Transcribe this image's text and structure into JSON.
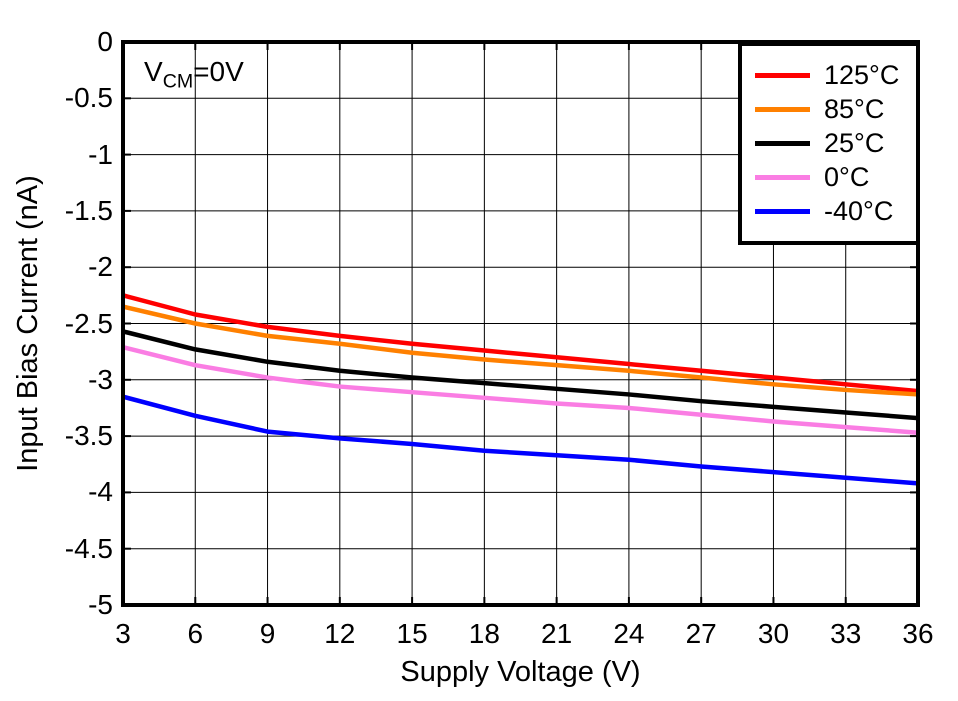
{
  "chart_data": {
    "type": "line",
    "title": "",
    "xlabel": "Supply Voltage (V)",
    "ylabel": "Input Bias Current (nA)",
    "annotation": {
      "text": "VCM=0V",
      "pre": "V",
      "sub": "CM",
      "post": "=0V"
    },
    "grid": true,
    "legend_position": "top-right",
    "xlim": [
      3,
      36
    ],
    "ylim": [
      -5,
      0
    ],
    "xticks": [
      3,
      6,
      9,
      12,
      15,
      18,
      21,
      24,
      27,
      30,
      33,
      36
    ],
    "yticks": [
      0,
      -0.5,
      -1,
      -1.5,
      -2,
      -2.5,
      -3,
      -3.5,
      -4,
      -4.5,
      -5
    ],
    "ytick_labels": [
      "0",
      "-0.5",
      "-1",
      "-1.5",
      "-2",
      "-2.5",
      "-3",
      "-3.5",
      "-4",
      "-4.5",
      "-5"
    ],
    "x": [
      3,
      6,
      9,
      12,
      15,
      18,
      21,
      24,
      27,
      30,
      33,
      36
    ],
    "series": [
      {
        "name": "125°C",
        "color": "#FF0000",
        "values": [
          -2.25,
          -2.42,
          -2.53,
          -2.61,
          -2.68,
          -2.74,
          -2.8,
          -2.86,
          -2.92,
          -2.98,
          -3.04,
          -3.1
        ]
      },
      {
        "name": "85°C",
        "color": "#FF8000",
        "values": [
          -2.35,
          -2.5,
          -2.61,
          -2.68,
          -2.76,
          -2.82,
          -2.87,
          -2.92,
          -2.98,
          -3.04,
          -3.09,
          -3.13
        ]
      },
      {
        "name": "25°C",
        "color": "#000000",
        "values": [
          -2.57,
          -2.73,
          -2.84,
          -2.92,
          -2.98,
          -3.03,
          -3.08,
          -3.13,
          -3.19,
          -3.24,
          -3.29,
          -3.34
        ]
      },
      {
        "name": "0°C",
        "color": "#FA7DE3",
        "values": [
          -2.71,
          -2.87,
          -2.98,
          -3.06,
          -3.11,
          -3.16,
          -3.21,
          -3.25,
          -3.31,
          -3.37,
          -3.42,
          -3.47
        ]
      },
      {
        "name": "-40°C",
        "color": "#0000FF",
        "values": [
          -3.15,
          -3.32,
          -3.46,
          -3.52,
          -3.57,
          -3.63,
          -3.67,
          -3.71,
          -3.77,
          -3.82,
          -3.87,
          -3.92
        ]
      }
    ]
  }
}
